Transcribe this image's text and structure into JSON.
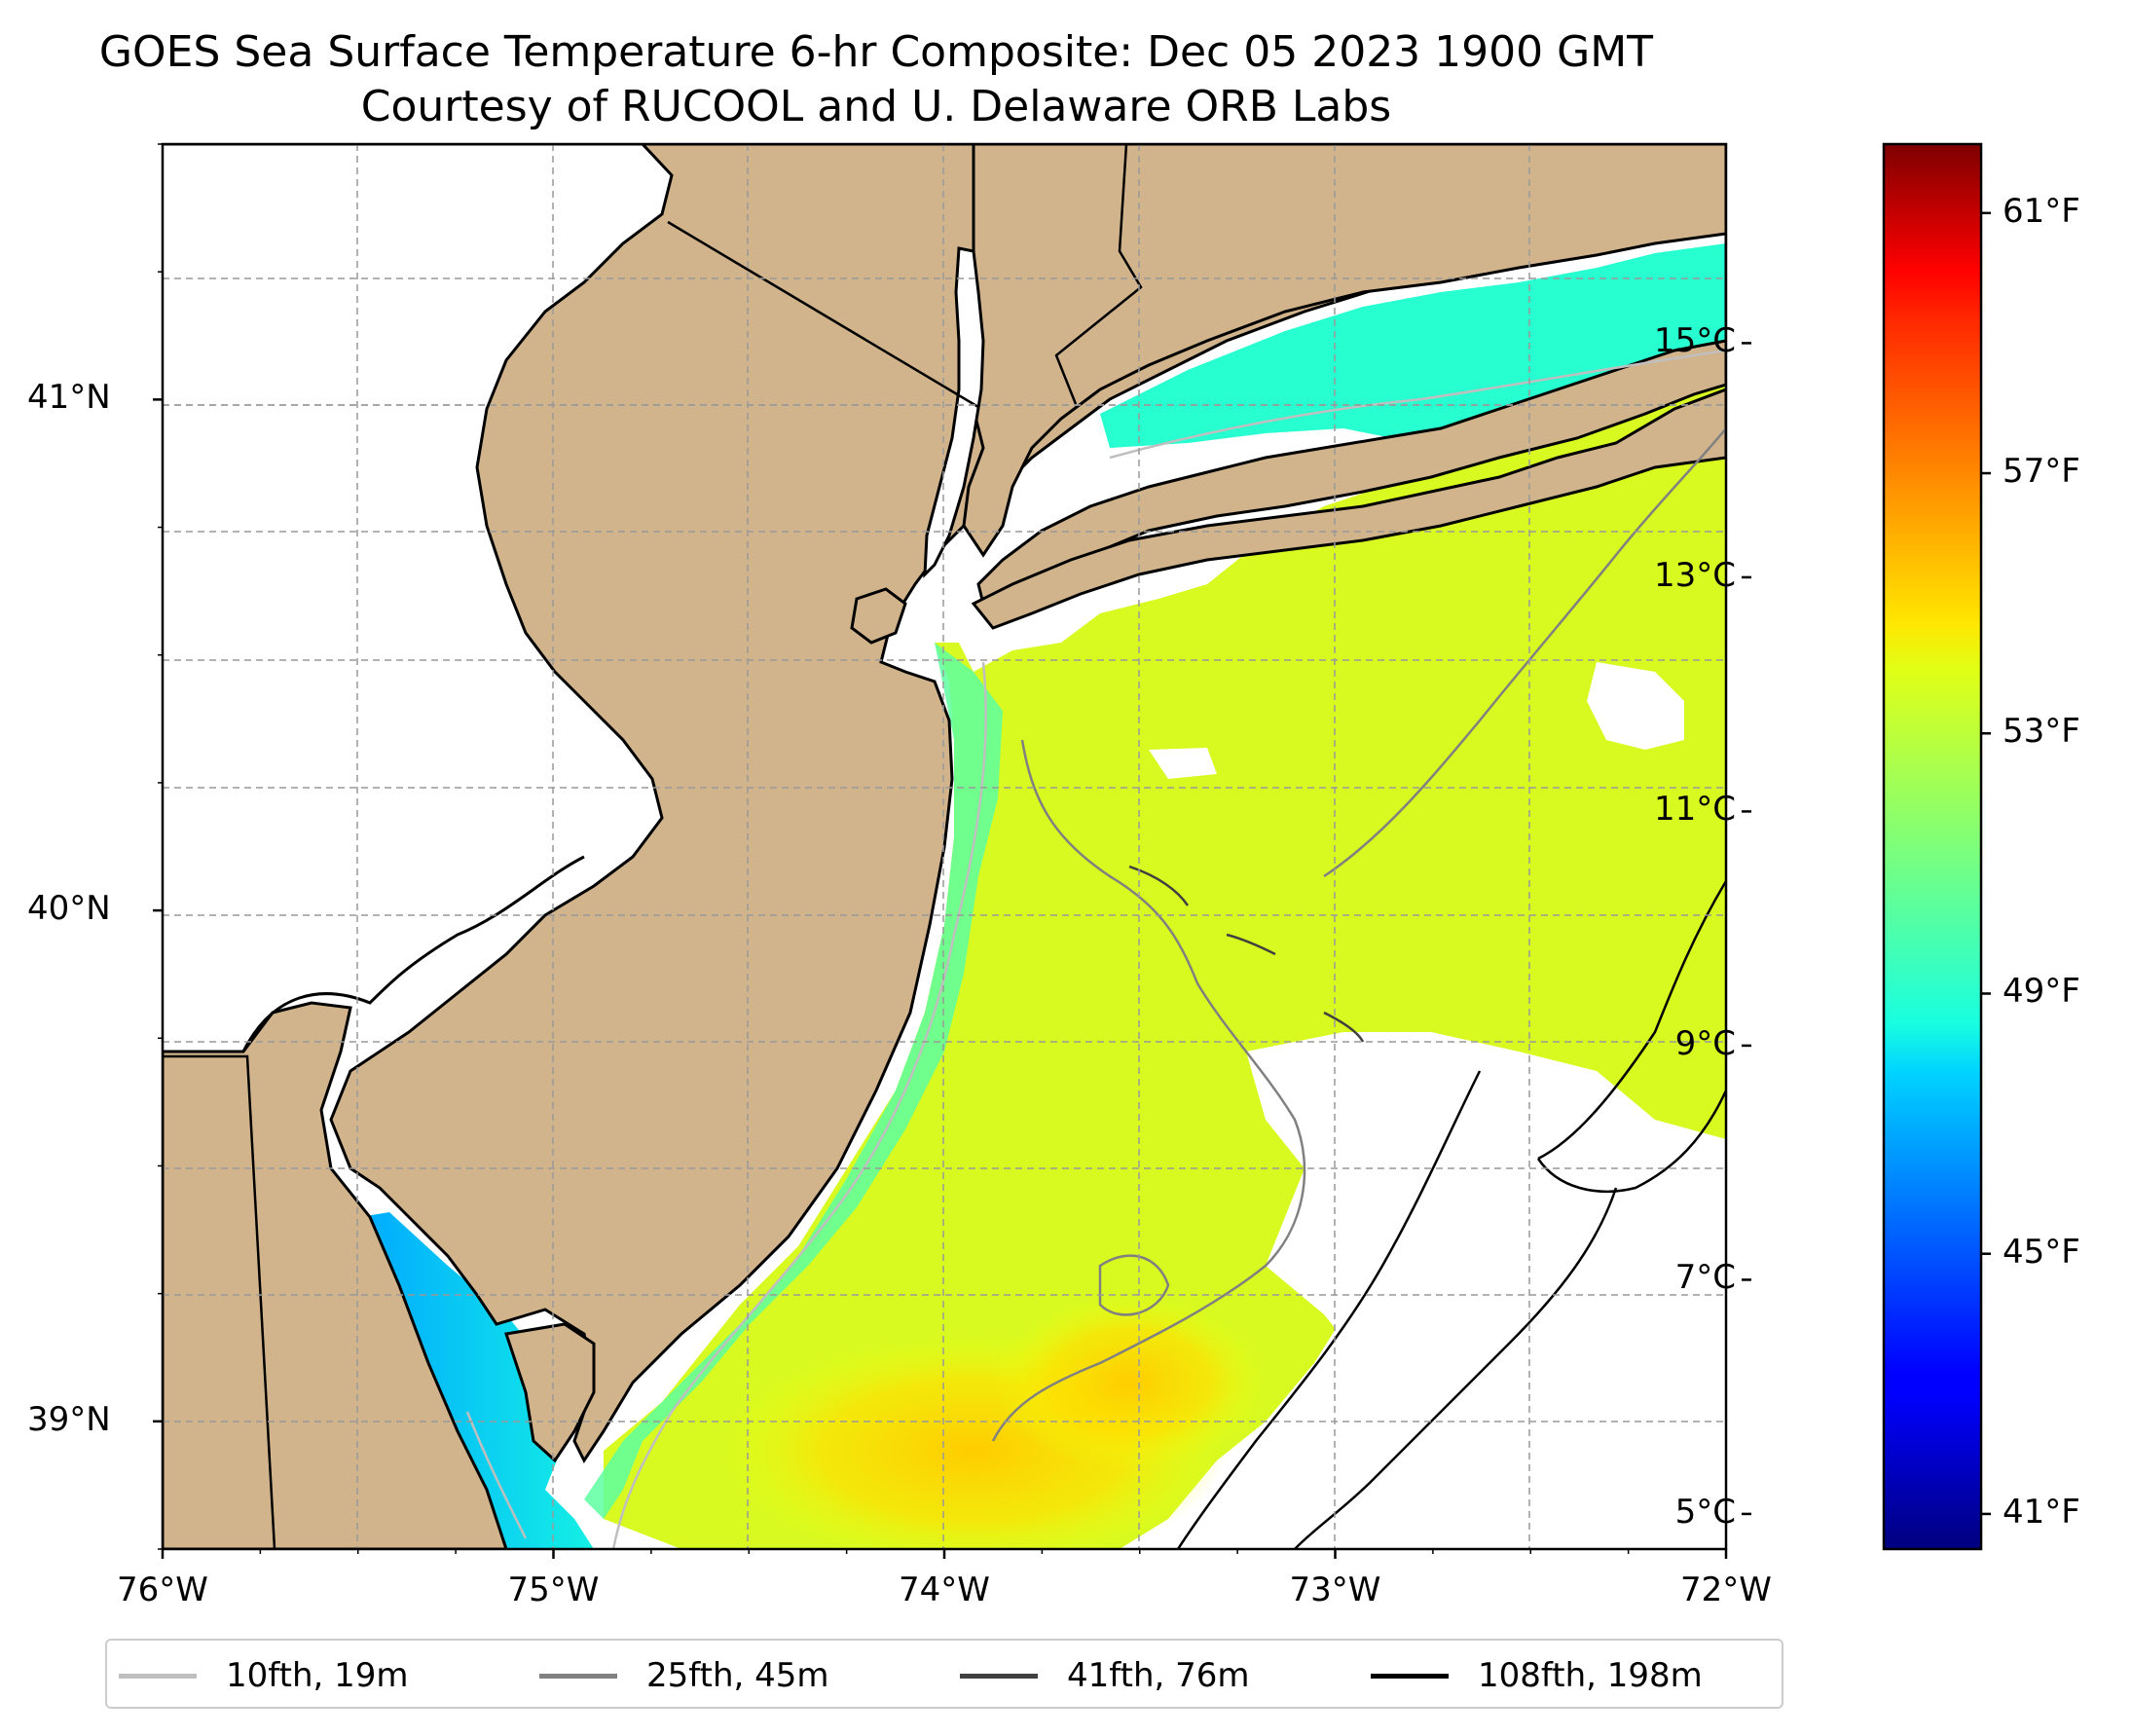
{
  "title": {
    "line1": "GOES Sea Surface Temperature 6-hr Composite: Dec 05 2023 1900 GMT",
    "line2": "Courtesy of RUCOOL and U. Delaware ORB Labs"
  },
  "map": {
    "lon_range": [
      -76,
      -72
    ],
    "lat_range": [
      38.75,
      41.5
    ],
    "land_color": "#d2b48c",
    "x_ticks": [
      {
        "value": -76,
        "label": "76°W"
      },
      {
        "value": -75,
        "label": "75°W"
      },
      {
        "value": -74,
        "label": "74°W"
      },
      {
        "value": -73,
        "label": "73°W"
      },
      {
        "value": -72,
        "label": "72°W"
      }
    ],
    "y_ticks": [
      {
        "value": 41,
        "label": "41°N"
      },
      {
        "value": 40,
        "label": "40°N"
      },
      {
        "value": 39,
        "label": "39°N"
      }
    ],
    "gridlines": true
  },
  "colorbar": {
    "colormap": "jet",
    "celsius_range": [
      4.7,
      16.7
    ],
    "celsius_ticks": [
      {
        "value": 5,
        "label": "5°C"
      },
      {
        "value": 7,
        "label": "7°C"
      },
      {
        "value": 9,
        "label": "9°C"
      },
      {
        "value": 11,
        "label": "11°C"
      },
      {
        "value": 13,
        "label": "13°C"
      },
      {
        "value": 15,
        "label": "15°C"
      }
    ],
    "fahrenheit_ticks": [
      {
        "value": 41,
        "label": "41°F"
      },
      {
        "value": 45,
        "label": "45°F"
      },
      {
        "value": 49,
        "label": "49°F"
      },
      {
        "value": 53,
        "label": "53°F"
      },
      {
        "value": 57,
        "label": "57°F"
      },
      {
        "value": 61,
        "label": "61°F"
      }
    ]
  },
  "legend": {
    "placement": "bottom",
    "items": [
      {
        "label": "10fth, 19m",
        "color": "#bfbfbf"
      },
      {
        "label": "25fth, 45m",
        "color": "#808080"
      },
      {
        "label": "41fth, 76m",
        "color": "#404040"
      },
      {
        "label": "108fth, 198m",
        "color": "#000000"
      }
    ]
  }
}
